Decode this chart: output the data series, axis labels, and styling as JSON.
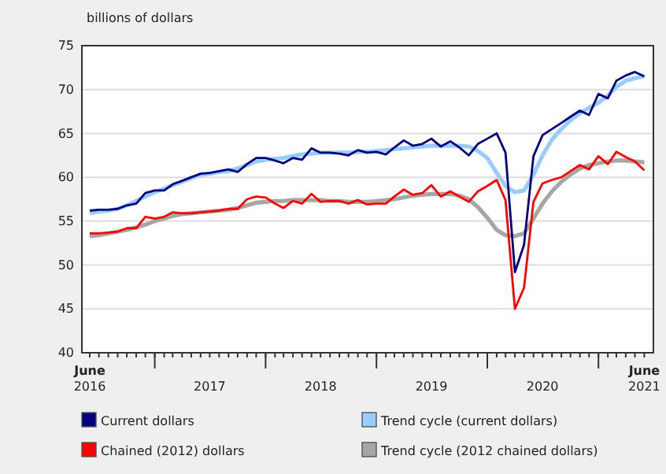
{
  "chart_data": {
    "type": "line",
    "ylabel": "billions of dollars",
    "x": [
      "2016-06",
      "2016-07",
      "2016-08",
      "2016-09",
      "2016-10",
      "2016-11",
      "2016-12",
      "2017-01",
      "2017-02",
      "2017-03",
      "2017-04",
      "2017-05",
      "2017-06",
      "2017-07",
      "2017-08",
      "2017-09",
      "2017-10",
      "2017-11",
      "2017-12",
      "2018-01",
      "2018-02",
      "2018-03",
      "2018-04",
      "2018-05",
      "2018-06",
      "2018-07",
      "2018-08",
      "2018-09",
      "2018-10",
      "2018-11",
      "2018-12",
      "2019-01",
      "2019-02",
      "2019-03",
      "2019-04",
      "2019-05",
      "2019-06",
      "2019-07",
      "2019-08",
      "2019-09",
      "2019-10",
      "2019-11",
      "2019-12",
      "2020-01",
      "2020-02",
      "2020-03",
      "2020-04",
      "2020-05",
      "2020-06",
      "2020-07",
      "2020-08",
      "2020-09",
      "2020-10",
      "2020-11",
      "2020-12",
      "2021-01",
      "2021-02",
      "2021-03",
      "2021-04",
      "2021-05",
      "2021-06"
    ],
    "series": [
      {
        "name": "Current dollars",
        "color": "#000080",
        "values": [
          56.2,
          56.3,
          56.3,
          56.4,
          56.8,
          57.0,
          58.2,
          58.5,
          58.5,
          59.2,
          59.6,
          60.0,
          60.4,
          60.5,
          60.7,
          60.9,
          60.6,
          61.5,
          62.2,
          62.2,
          61.9,
          61.6,
          62.2,
          62.0,
          63.3,
          62.8,
          62.8,
          62.7,
          62.5,
          63.1,
          62.8,
          62.9,
          62.6,
          63.4,
          64.2,
          63.6,
          63.8,
          64.4,
          63.5,
          64.1,
          63.4,
          62.5,
          63.8,
          64.4,
          65.0,
          62.8,
          49.2,
          52.3,
          62.4,
          64.8,
          65.5,
          66.2,
          66.9,
          67.6,
          67.1,
          69.5,
          69.0,
          71.0,
          71.6,
          72.0,
          71.5
        ]
      },
      {
        "name": "Trend cycle (current dollars)",
        "color": "#99ccff",
        "values": [
          55.9,
          56.1,
          56.2,
          56.4,
          56.8,
          57.3,
          57.8,
          58.3,
          58.7,
          59.1,
          59.5,
          59.9,
          60.3,
          60.4,
          60.6,
          60.7,
          61.0,
          61.4,
          61.8,
          62.0,
          62.1,
          62.2,
          62.4,
          62.6,
          62.7,
          62.8,
          62.8,
          62.8,
          62.8,
          62.9,
          62.9,
          63.0,
          63.1,
          63.2,
          63.3,
          63.4,
          63.5,
          63.6,
          63.6,
          63.6,
          63.6,
          63.5,
          63.0,
          62.2,
          60.5,
          59.0,
          58.3,
          58.5,
          60.3,
          62.5,
          64.3,
          65.5,
          66.5,
          67.3,
          67.9,
          68.5,
          69.3,
          70.3,
          71.0,
          71.3,
          71.5
        ]
      },
      {
        "name": "Chained (2012) dollars",
        "color": "#ff0000",
        "values": [
          53.6,
          53.6,
          53.7,
          53.8,
          54.2,
          54.2,
          55.5,
          55.3,
          55.5,
          56.0,
          55.9,
          55.9,
          56.0,
          56.1,
          56.2,
          56.4,
          56.4,
          57.5,
          57.8,
          57.7,
          57.0,
          56.5,
          57.3,
          57.0,
          58.1,
          57.2,
          57.3,
          57.3,
          57.0,
          57.4,
          56.9,
          57.0,
          57.0,
          57.8,
          58.6,
          58.0,
          58.2,
          59.1,
          57.8,
          58.4,
          57.8,
          57.2,
          58.4,
          59.0,
          59.7,
          57.4,
          45.0,
          47.4,
          57.2,
          59.3,
          59.7,
          60.0,
          60.7,
          61.4,
          60.9,
          62.4,
          61.5,
          62.9,
          62.3,
          61.8,
          60.8
        ]
      },
      {
        "name": "Trend cycle (2012 chained dollars)",
        "color": "#a6a6a6",
        "values": [
          53.3,
          53.4,
          53.6,
          53.8,
          54.0,
          54.3,
          54.6,
          55.0,
          55.3,
          55.6,
          55.8,
          55.9,
          56.0,
          56.1,
          56.2,
          56.3,
          56.5,
          56.8,
          57.1,
          57.2,
          57.3,
          57.3,
          57.4,
          57.4,
          57.4,
          57.4,
          57.3,
          57.3,
          57.2,
          57.2,
          57.2,
          57.3,
          57.4,
          57.5,
          57.7,
          57.9,
          58.0,
          58.1,
          58.1,
          58.1,
          57.9,
          57.5,
          56.6,
          55.4,
          54.0,
          53.4,
          53.3,
          53.6,
          55.3,
          57.0,
          58.4,
          59.5,
          60.3,
          61.0,
          61.4,
          61.6,
          61.8,
          61.9,
          61.9,
          61.8,
          61.7
        ]
      }
    ],
    "xlim": [
      "2016-05-06",
      "2021-07-01"
    ],
    "xticks": [
      {
        "value": "2016-06",
        "label": "June 2016"
      },
      {
        "value": "2017-01",
        "label": null
      },
      {
        "value": "2017-07",
        "label": "2017"
      },
      {
        "value": "2018-01",
        "label": null
      },
      {
        "value": "2018-07",
        "label": "2018"
      },
      {
        "value": "2019-01",
        "label": null
      },
      {
        "value": "2019-07",
        "label": "2019"
      },
      {
        "value": "2020-01",
        "label": null
      },
      {
        "value": "2020-07",
        "label": "2020"
      },
      {
        "value": "2021-01",
        "label": null
      },
      {
        "value": "2021-06",
        "label": "June 2021"
      }
    ],
    "ylim": [
      40,
      75
    ],
    "yticks": [
      40,
      45,
      50,
      55,
      60,
      65,
      70,
      75
    ],
    "grid": "y",
    "legend": "bottom",
    "marker": "none",
    "line_style": "solid"
  }
}
